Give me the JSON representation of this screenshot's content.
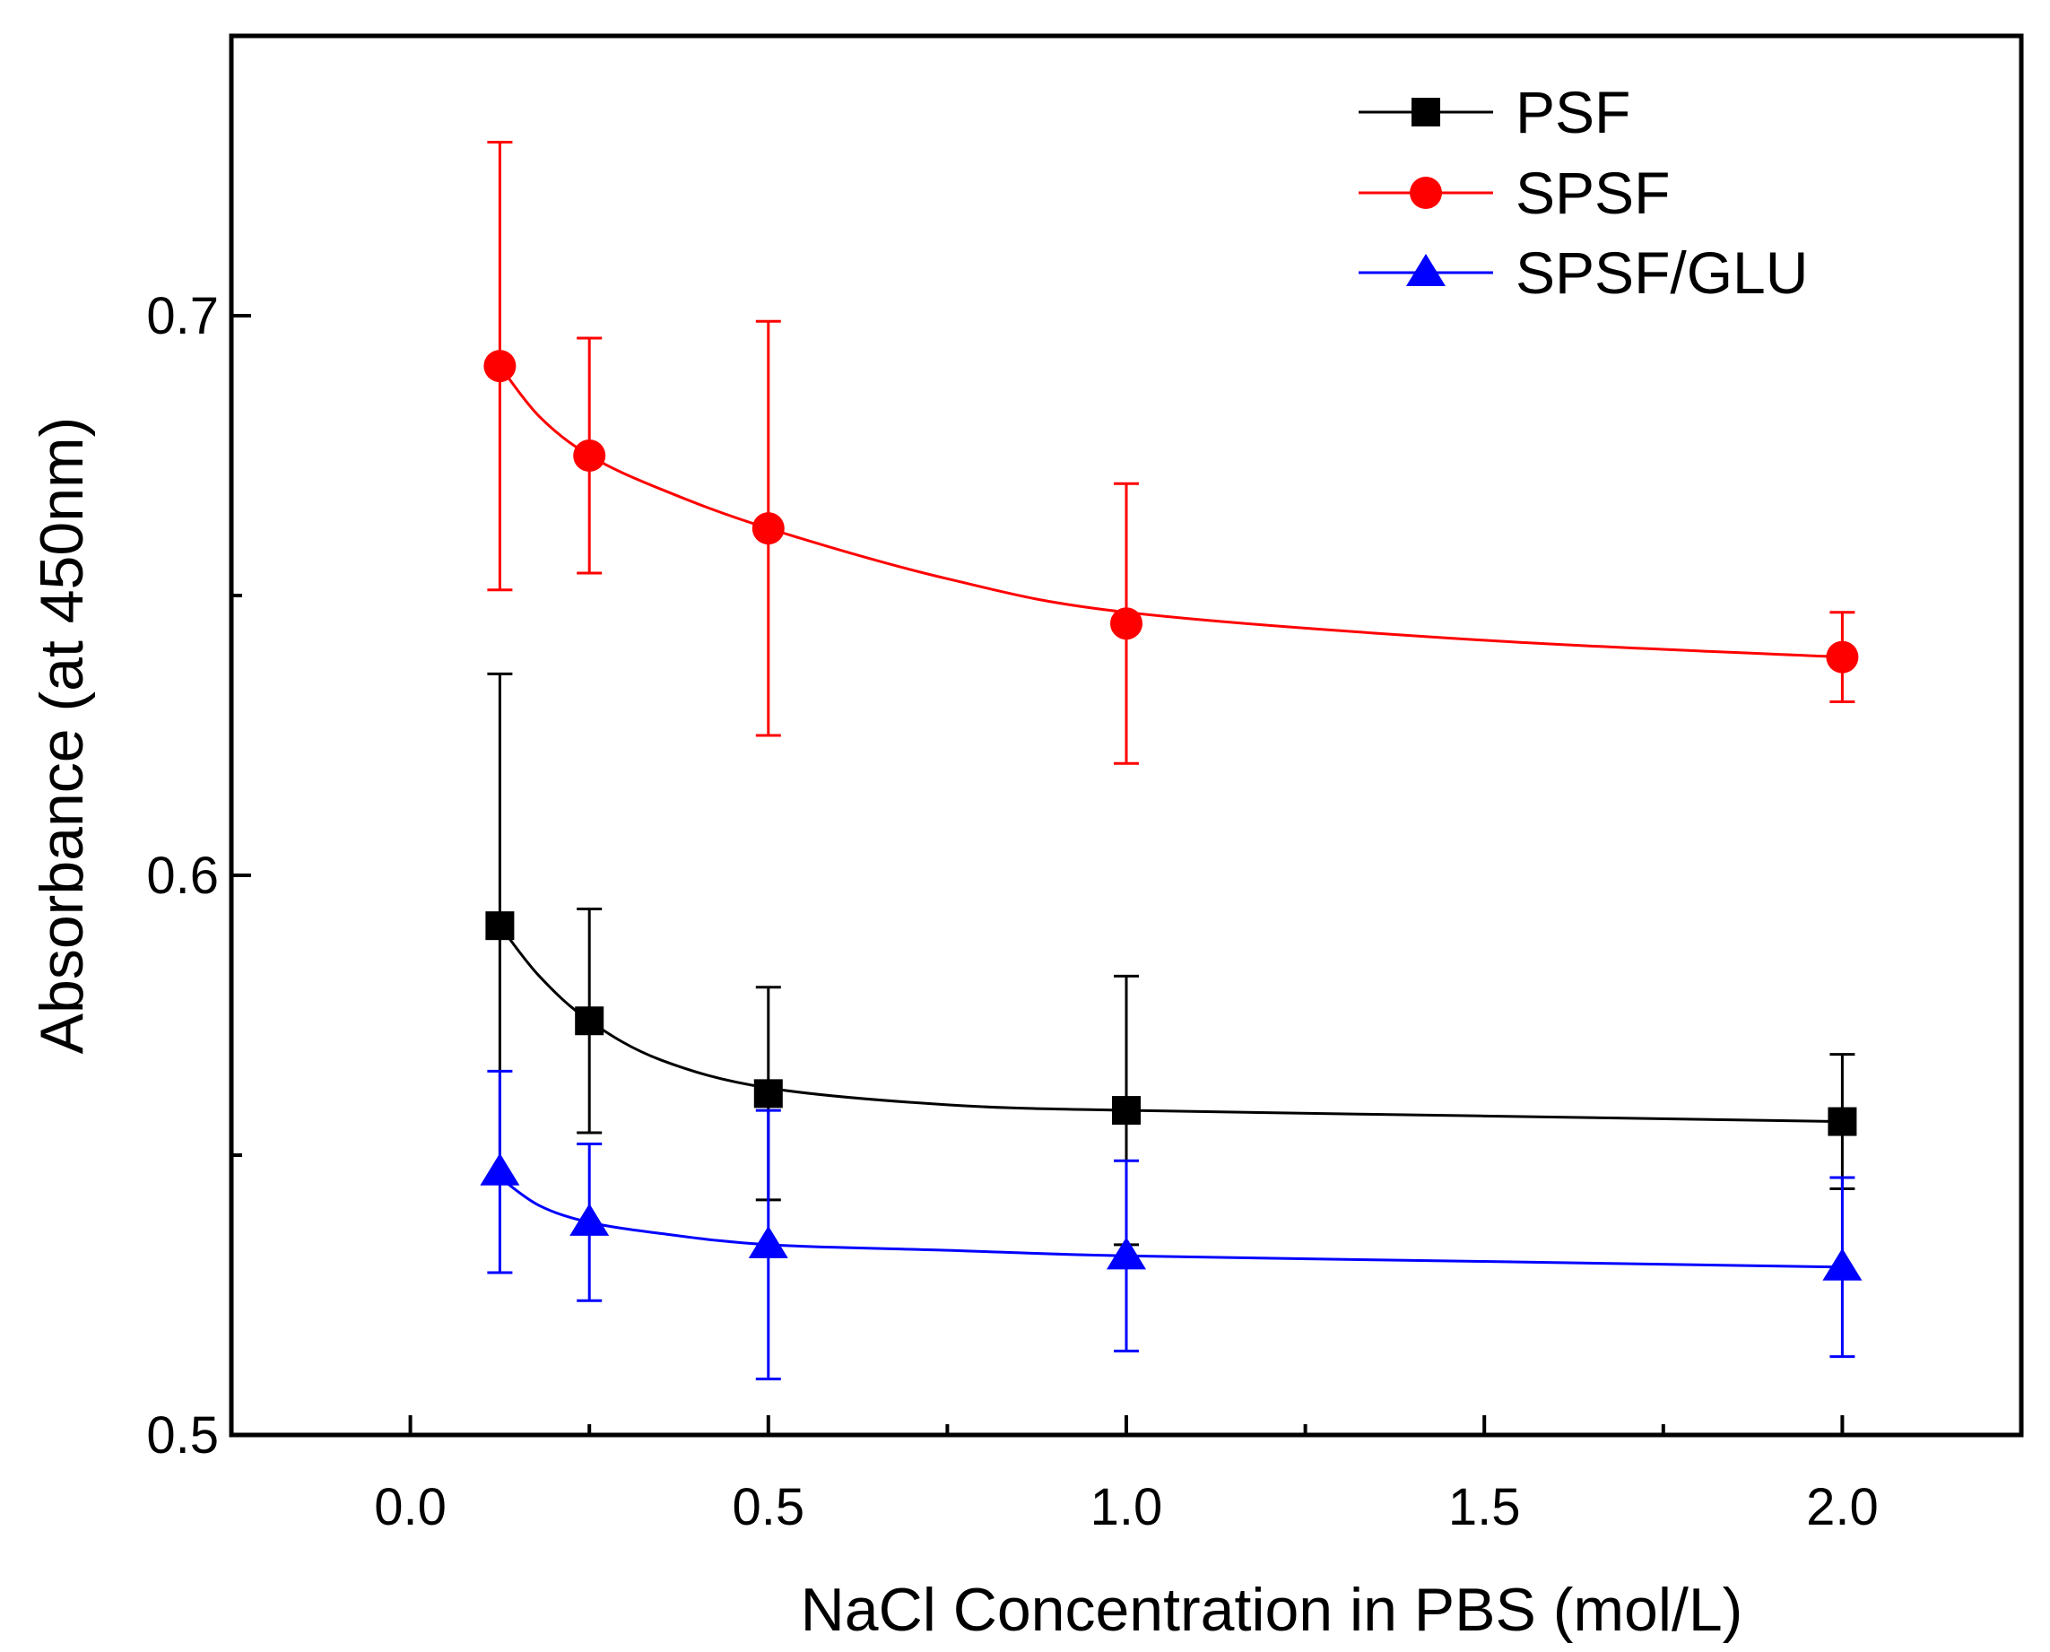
{
  "chart_data": {
    "type": "line",
    "xlabel": "NaCl Concentration in PBS (mol/L)",
    "ylabel": "Absorbance (at 450nm)",
    "xlim": [
      -0.25,
      2.25
    ],
    "ylim": [
      0.5,
      0.75
    ],
    "x_ticks": [
      "0.0",
      "0.5",
      "1.0",
      "1.5",
      "2.0"
    ],
    "y_ticks": [
      "0.5",
      "0.6",
      "0.7"
    ],
    "legend_position": "top-right",
    "grid": false,
    "x": [
      0.125,
      0.25,
      0.5,
      1.0,
      2.0
    ],
    "series": [
      {
        "name": "PSF",
        "color": "#000000",
        "marker": "square",
        "values": [
          0.591,
          0.574,
          0.561,
          0.558,
          0.556
        ],
        "error_plus": [
          0.045,
          0.02,
          0.019,
          0.024,
          0.012
        ],
        "error_minus": [
          0.045,
          0.02,
          0.019,
          0.024,
          0.012
        ],
        "fit_curve": [
          [
            0.125,
            0.591
          ],
          [
            0.18,
            0.582
          ],
          [
            0.25,
            0.574
          ],
          [
            0.35,
            0.567
          ],
          [
            0.5,
            0.562
          ],
          [
            0.75,
            0.559
          ],
          [
            1.0,
            0.558
          ],
          [
            1.5,
            0.557
          ],
          [
            2.0,
            0.556
          ]
        ]
      },
      {
        "name": "SPSF",
        "color": "#ff0000",
        "marker": "circle",
        "values": [
          0.691,
          0.675,
          0.662,
          0.645,
          0.639
        ],
        "error_plus": [
          0.04,
          0.021,
          0.037,
          0.025,
          0.008
        ],
        "error_minus": [
          0.04,
          0.021,
          0.037,
          0.025,
          0.008
        ],
        "fit_curve": [
          [
            0.125,
            0.691
          ],
          [
            0.18,
            0.682
          ],
          [
            0.25,
            0.675
          ],
          [
            0.35,
            0.669
          ],
          [
            0.5,
            0.662
          ],
          [
            0.75,
            0.653
          ],
          [
            1.0,
            0.647
          ],
          [
            1.5,
            0.642
          ],
          [
            2.0,
            0.639
          ]
        ]
      },
      {
        "name": "SPSF/GLU",
        "color": "#0000ff",
        "marker": "triangle",
        "values": [
          0.547,
          0.538,
          0.534,
          0.532,
          0.53
        ],
        "error_plus": [
          0.018,
          0.014,
          0.024,
          0.017,
          0.016
        ],
        "error_minus": [
          0.018,
          0.014,
          0.024,
          0.017,
          0.016
        ],
        "fit_curve": [
          [
            0.125,
            0.546
          ],
          [
            0.18,
            0.541
          ],
          [
            0.25,
            0.538
          ],
          [
            0.35,
            0.536
          ],
          [
            0.5,
            0.534
          ],
          [
            0.75,
            0.533
          ],
          [
            1.0,
            0.532
          ],
          [
            1.5,
            0.531
          ],
          [
            2.0,
            0.53
          ]
        ]
      }
    ]
  }
}
